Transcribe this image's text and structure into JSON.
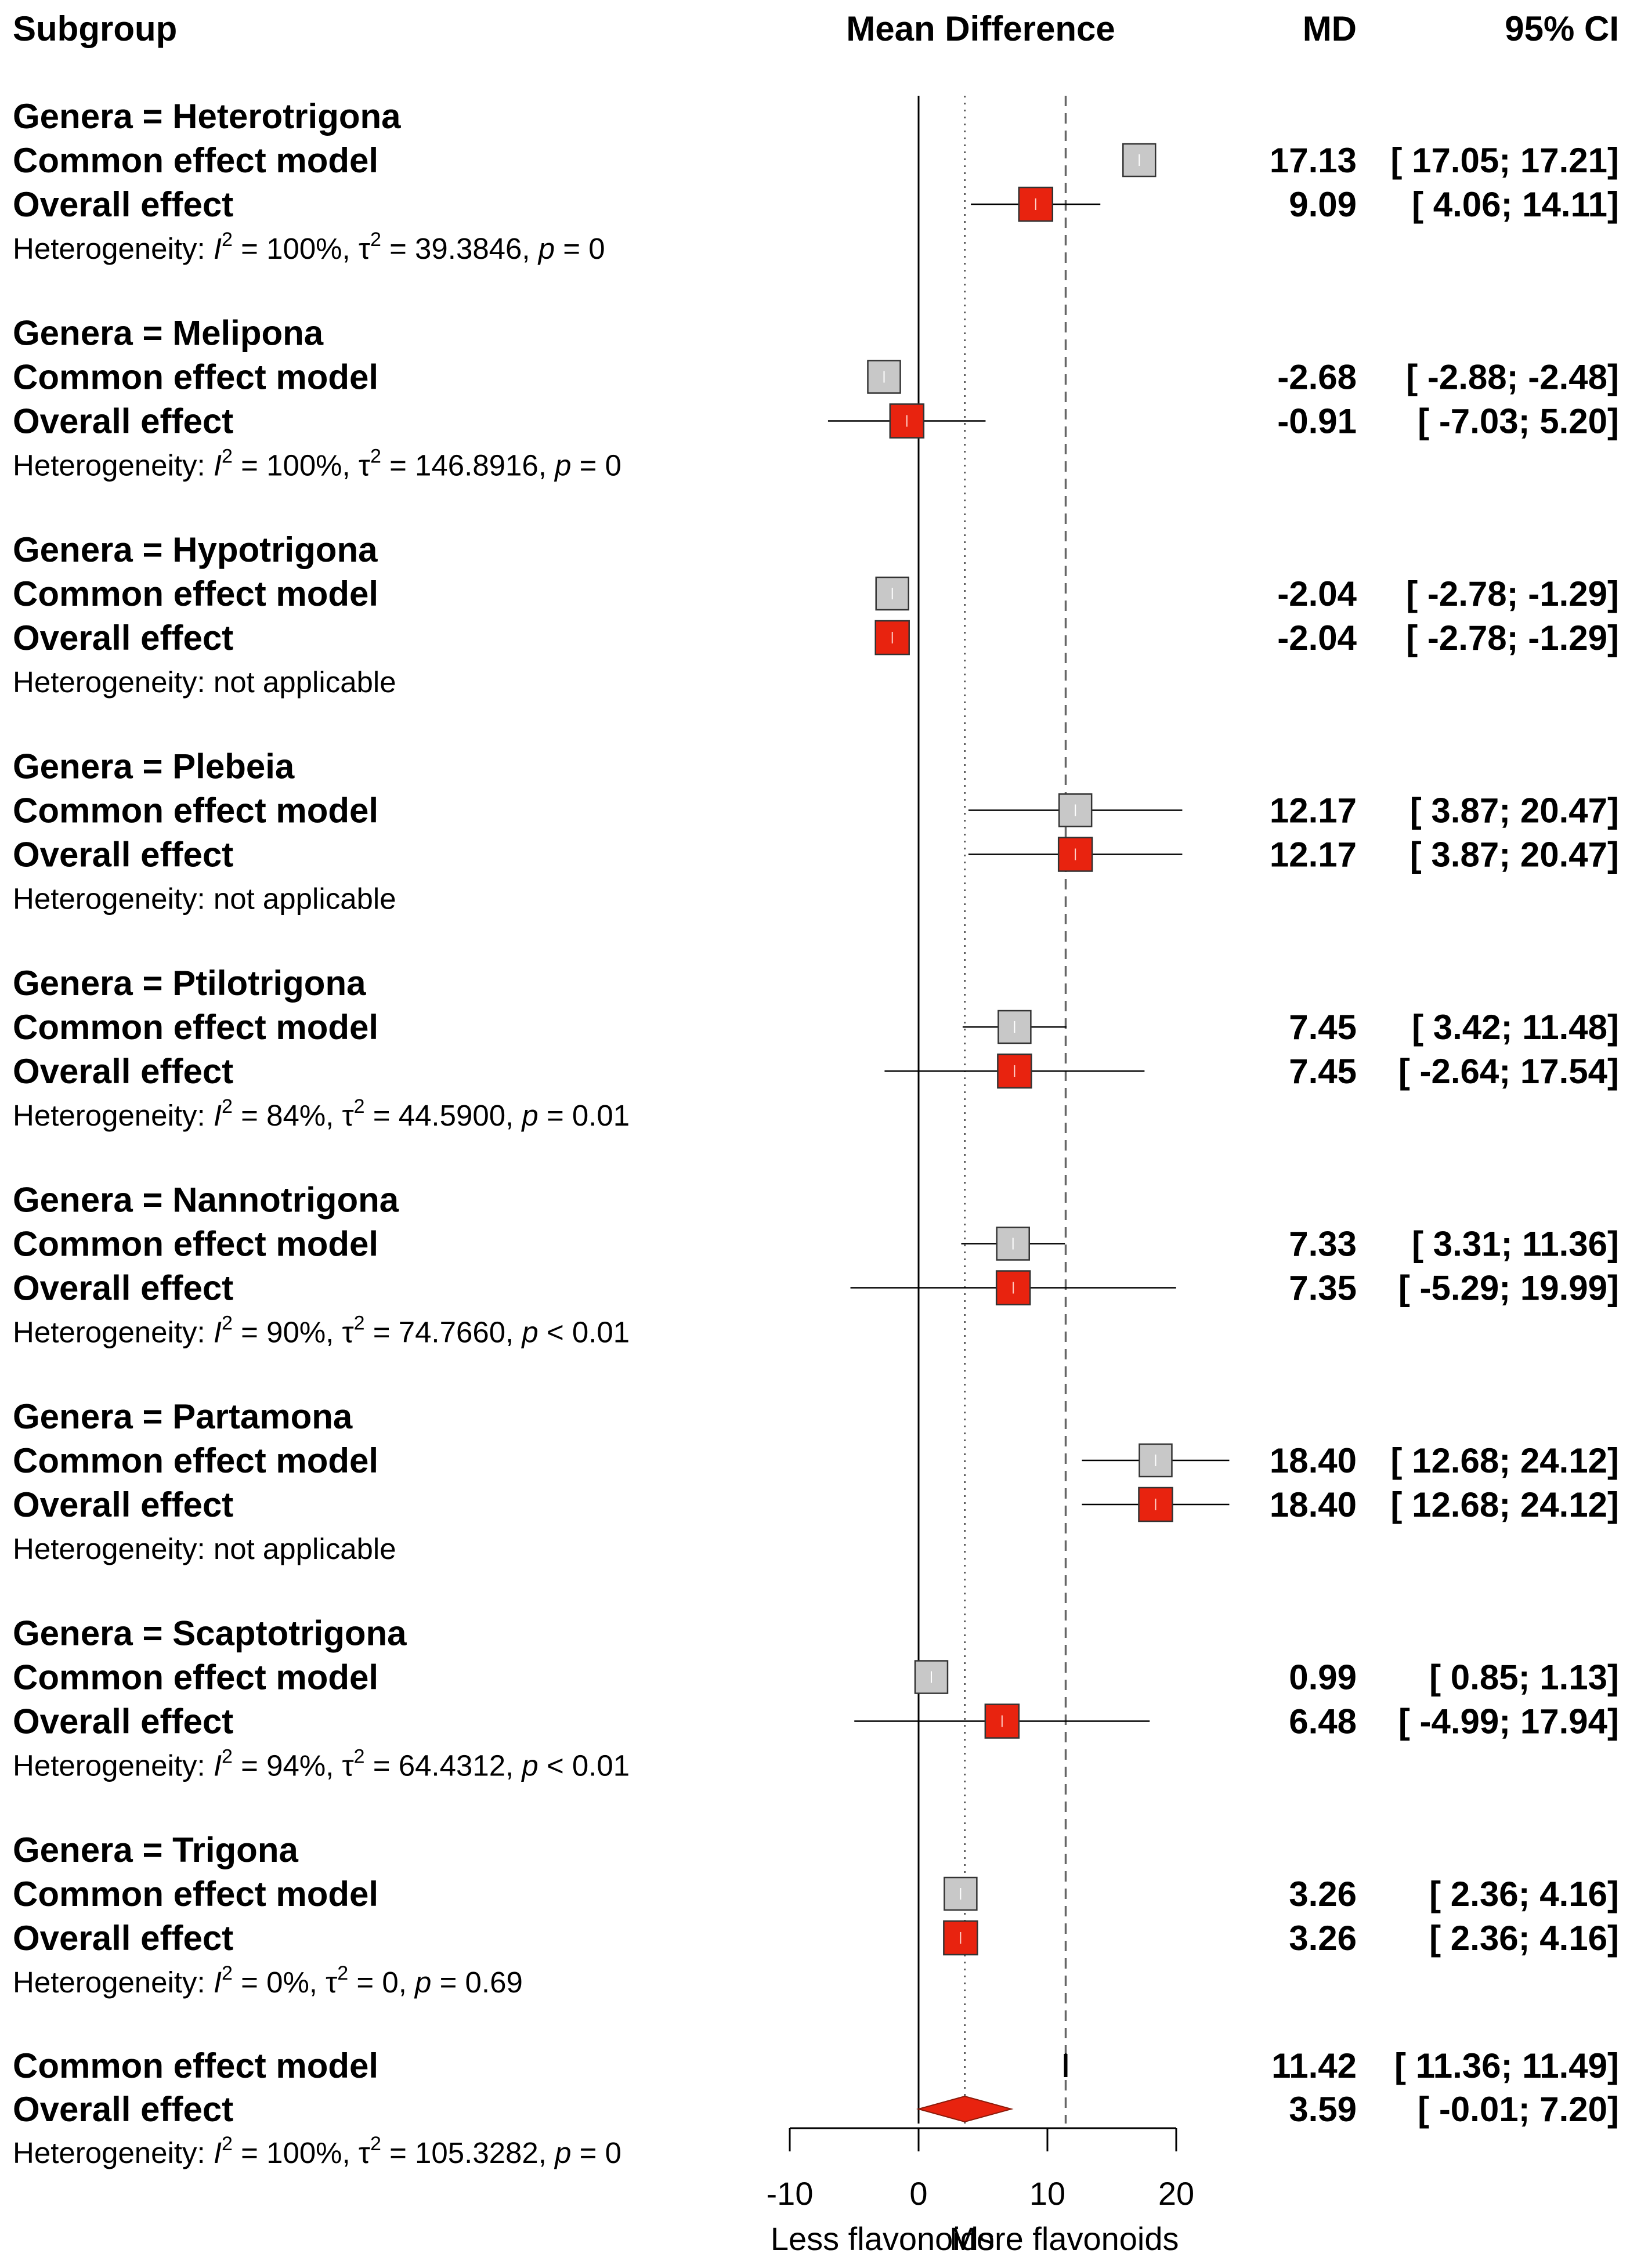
{
  "chart_data": {
    "type": "forest",
    "header": {
      "subgroup": "Subgroup",
      "mean_difference": "Mean Difference",
      "md": "MD",
      "ci": "95% CI"
    },
    "xlim": [
      -10,
      20
    ],
    "x_ticks": [
      "-10",
      "0",
      "10",
      "20"
    ],
    "x_tick_values": [
      -10,
      0,
      10,
      20
    ],
    "xlabel_left": "Less flavonoids",
    "xlabel_right": "More flavonoids",
    "reference_lines": {
      "null": 0,
      "common_effect": 11.42,
      "overall_effect": 3.59
    },
    "row_labels": {
      "common": "Common effect model",
      "overall": "Overall effect"
    },
    "colors": {
      "common_box": "#c8c8c8",
      "overall_box": "#e8230f",
      "diamond": "#e8230f"
    },
    "subgroups": [
      {
        "title": "Genera = Heterotrigona",
        "common": {
          "md": 17.13,
          "lower": 17.05,
          "upper": 17.21,
          "md_text": "17.13",
          "ci_text": "[ 17.05;  17.21]"
        },
        "overall": {
          "md": 9.09,
          "lower": 4.06,
          "upper": 14.11,
          "md_text": "9.09",
          "ci_text": "[  4.06;  14.11]"
        },
        "heterogeneity": {
          "na": false,
          "i2": "100%",
          "tau2": "39.3846",
          "p": "= 0"
        }
      },
      {
        "title": "Genera = Melipona",
        "common": {
          "md": -2.68,
          "lower": -2.88,
          "upper": -2.48,
          "md_text": "-2.68",
          "ci_text": "[ -2.88;  -2.48]"
        },
        "overall": {
          "md": -0.91,
          "lower": -7.03,
          "upper": 5.2,
          "md_text": "-0.91",
          "ci_text": "[ -7.03;   5.20]"
        },
        "heterogeneity": {
          "na": false,
          "i2": "100%",
          "tau2": "146.8916",
          "p": "= 0"
        }
      },
      {
        "title": "Genera = Hypotrigona",
        "common": {
          "md": -2.04,
          "lower": -2.78,
          "upper": -1.29,
          "md_text": "-2.04",
          "ci_text": "[ -2.78;  -1.29]"
        },
        "overall": {
          "md": -2.04,
          "lower": -2.78,
          "upper": -1.29,
          "md_text": "-2.04",
          "ci_text": "[ -2.78;  -1.29]"
        },
        "heterogeneity": {
          "na": true,
          "text": "Heterogeneity: not applicable"
        }
      },
      {
        "title": "Genera = Plebeia",
        "common": {
          "md": 12.17,
          "lower": 3.87,
          "upper": 20.47,
          "md_text": "12.17",
          "ci_text": "[  3.87;  20.47]"
        },
        "overall": {
          "md": 12.17,
          "lower": 3.87,
          "upper": 20.47,
          "md_text": "12.17",
          "ci_text": "[  3.87;  20.47]"
        },
        "heterogeneity": {
          "na": true,
          "text": "Heterogeneity: not applicable"
        }
      },
      {
        "title": "Genera = Ptilotrigona",
        "common": {
          "md": 7.45,
          "lower": 3.42,
          "upper": 11.48,
          "md_text": "7.45",
          "ci_text": "[  3.42;  11.48]"
        },
        "overall": {
          "md": 7.45,
          "lower": -2.64,
          "upper": 17.54,
          "md_text": "7.45",
          "ci_text": "[ -2.64;  17.54]"
        },
        "heterogeneity": {
          "na": false,
          "i2": "84%",
          "tau2": "44.5900",
          "p": "= 0.01"
        }
      },
      {
        "title": "Genera = Nannotrigona",
        "common": {
          "md": 7.33,
          "lower": 3.31,
          "upper": 11.36,
          "md_text": "7.33",
          "ci_text": "[  3.31;  11.36]"
        },
        "overall": {
          "md": 7.35,
          "lower": -5.29,
          "upper": 19.99,
          "md_text": "7.35",
          "ci_text": "[ -5.29;  19.99]"
        },
        "heterogeneity": {
          "na": false,
          "i2": "90%",
          "tau2": "74.7660",
          "p": "< 0.01"
        }
      },
      {
        "title": "Genera = Partamona",
        "common": {
          "md": 18.4,
          "lower": 12.68,
          "upper": 24.12,
          "md_text": "18.40",
          "ci_text": "[ 12.68;  24.12]"
        },
        "overall": {
          "md": 18.4,
          "lower": 12.68,
          "upper": 24.12,
          "md_text": "18.40",
          "ci_text": "[ 12.68;  24.12]"
        },
        "heterogeneity": {
          "na": true,
          "text": "Heterogeneity: not applicable"
        }
      },
      {
        "title": "Genera = Scaptotrigona",
        "common": {
          "md": 0.99,
          "lower": 0.85,
          "upper": 1.13,
          "md_text": "0.99",
          "ci_text": "[  0.85;   1.13]"
        },
        "overall": {
          "md": 6.48,
          "lower": -4.99,
          "upper": 17.94,
          "md_text": "6.48",
          "ci_text": "[ -4.99;  17.94]"
        },
        "heterogeneity": {
          "na": false,
          "i2": "94%",
          "tau2": "64.4312",
          "p": "< 0.01"
        }
      },
      {
        "title": "Genera = Trigona",
        "common": {
          "md": 3.26,
          "lower": 2.36,
          "upper": 4.16,
          "md_text": "3.26",
          "ci_text": "[  2.36;   4.16]"
        },
        "overall": {
          "md": 3.26,
          "lower": 2.36,
          "upper": 4.16,
          "md_text": "3.26",
          "ci_text": "[  2.36;   4.16]"
        },
        "heterogeneity": {
          "na": false,
          "i2": "0%",
          "tau2": "0",
          "p": "= 0.69"
        }
      }
    ],
    "total": {
      "common": {
        "md": 11.42,
        "lower": 11.36,
        "upper": 11.49,
        "md_text": "11.42",
        "ci_text": "[ 11.36;  11.49]"
      },
      "overall": {
        "md": 3.59,
        "lower": -0.01,
        "upper": 7.2,
        "md_text": "3.59",
        "ci_text": "[ -0.01;   7.20]"
      },
      "heterogeneity": {
        "na": false,
        "i2": "100%",
        "tau2": "105.3282",
        "p": "= 0"
      }
    }
  }
}
